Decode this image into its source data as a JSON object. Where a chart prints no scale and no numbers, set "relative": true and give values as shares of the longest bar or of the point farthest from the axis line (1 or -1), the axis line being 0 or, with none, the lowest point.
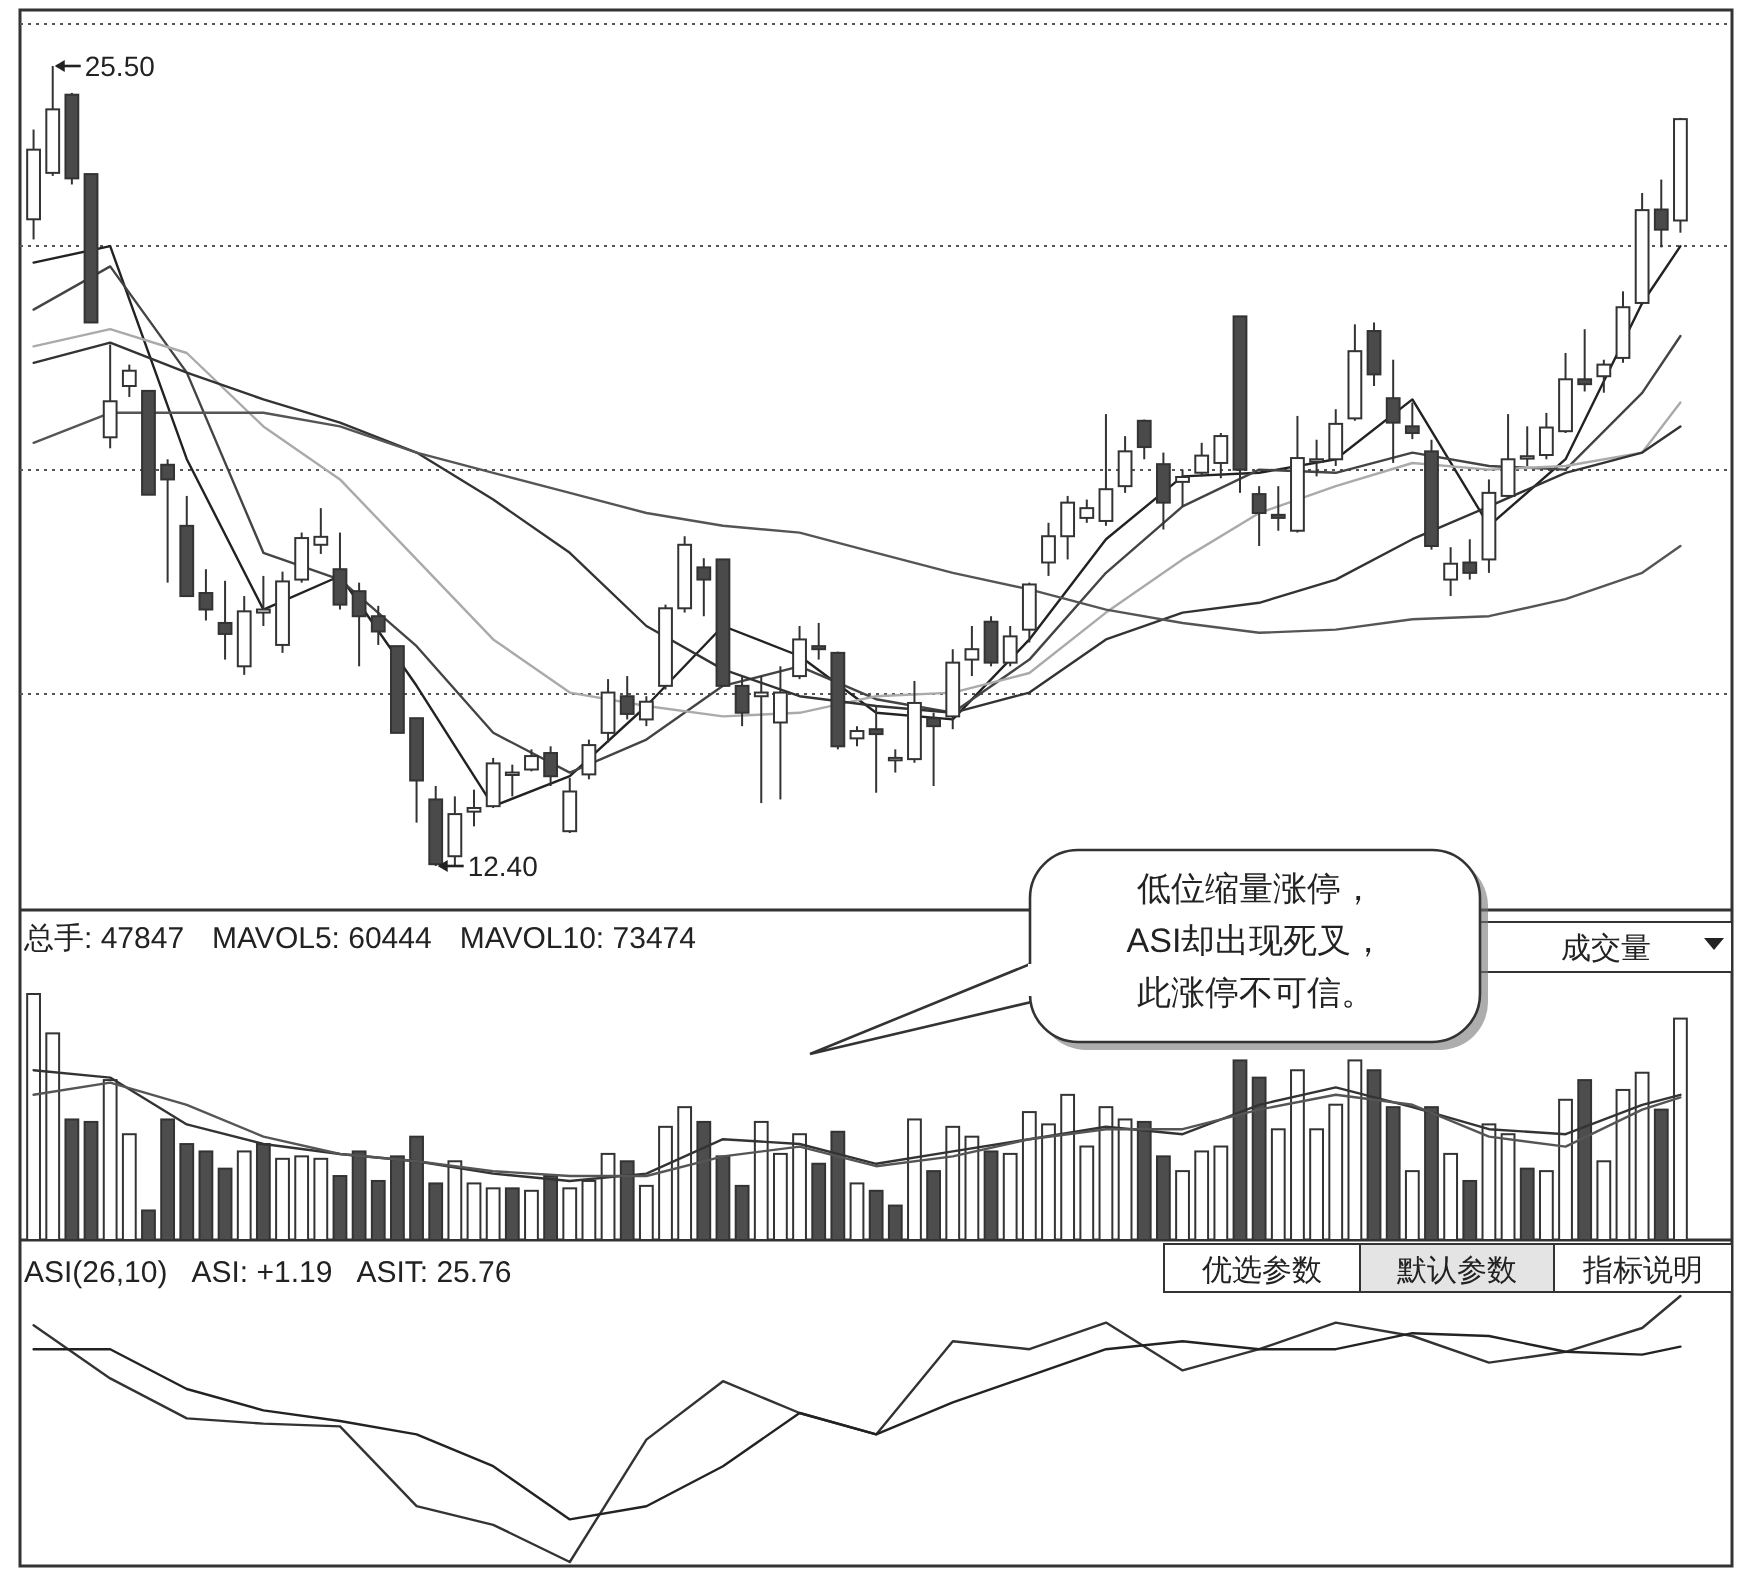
{
  "chart_data": [
    {
      "type": "candlestick",
      "grid": "y",
      "categories": [
        null,
        null,
        null,
        null,
        null,
        null,
        null,
        null,
        null,
        null,
        null,
        null,
        null,
        null,
        null,
        null,
        null,
        null,
        null,
        null,
        null,
        null,
        null,
        null,
        null,
        null,
        null,
        null,
        null,
        null,
        null,
        null,
        null,
        null,
        null,
        null,
        null,
        null,
        null,
        null,
        null,
        null,
        null,
        null,
        null,
        null,
        null,
        null,
        null,
        null,
        null,
        null,
        null,
        null,
        null,
        null,
        null,
        null,
        null,
        null,
        null,
        null,
        null,
        null,
        null,
        null,
        null,
        null,
        null,
        null,
        null,
        null,
        null,
        null,
        null,
        null,
        null,
        null,
        null,
        null,
        null,
        null,
        null,
        null,
        null,
        null,
        null
      ],
      "ohlc": [
        [
          22.99,
          24.46,
          22.66,
          24.13
        ],
        [
          23.75,
          25.5,
          23.7,
          24.79
        ],
        [
          25.03,
          25.06,
          23.56,
          23.66
        ],
        [
          23.73,
          23.73,
          21.3,
          21.3
        ],
        [
          19.42,
          20.94,
          19.24,
          20.01
        ],
        [
          20.26,
          20.61,
          20.08,
          20.51
        ],
        [
          20.18,
          20.18,
          18.48,
          18.48
        ],
        [
          18.97,
          19.06,
          17.04,
          18.73
        ],
        [
          17.97,
          18.46,
          16.82,
          16.82
        ],
        [
          16.87,
          17.26,
          16.42,
          16.6
        ],
        [
          16.38,
          17.07,
          15.78,
          16.2
        ],
        [
          15.67,
          16.82,
          15.53,
          16.57
        ],
        [
          16.55,
          17.15,
          16.33,
          16.6
        ],
        [
          16.02,
          17.22,
          15.89,
          17.06
        ],
        [
          17.09,
          17.86,
          17.04,
          17.77
        ],
        [
          17.66,
          18.26,
          17.51,
          17.79
        ],
        [
          17.26,
          17.86,
          16.6,
          16.68
        ],
        [
          16.9,
          17.04,
          15.67,
          16.49
        ],
        [
          16.49,
          16.66,
          16.02,
          16.24
        ],
        [
          16.0,
          16.0,
          14.58,
          14.58
        ],
        [
          14.82,
          14.82,
          13.11,
          13.8
        ],
        [
          13.49,
          13.71,
          12.4,
          12.43
        ],
        [
          12.56,
          13.54,
          12.4,
          13.25
        ],
        [
          13.29,
          13.65,
          13.05,
          13.35
        ],
        [
          13.38,
          14.17,
          13.35,
          14.08
        ],
        [
          13.89,
          14.06,
          13.54,
          13.93
        ],
        [
          13.98,
          14.31,
          13.95,
          14.2
        ],
        [
          14.25,
          14.36,
          13.71,
          13.87
        ],
        [
          12.97,
          13.84,
          12.94,
          13.62
        ],
        [
          13.9,
          14.47,
          13.82,
          14.38
        ],
        [
          14.58,
          15.46,
          14.42,
          15.24
        ],
        [
          15.18,
          15.51,
          14.8,
          14.89
        ],
        [
          14.8,
          15.18,
          14.69,
          15.09
        ],
        [
          15.35,
          16.68,
          15.29,
          16.62
        ],
        [
          16.62,
          17.8,
          16.55,
          17.66
        ],
        [
          17.29,
          17.44,
          16.49,
          17.09
        ],
        [
          17.42,
          17.42,
          15.35,
          15.35
        ],
        [
          15.35,
          15.51,
          14.69,
          14.91
        ],
        [
          15.18,
          15.51,
          13.43,
          15.24
        ],
        [
          14.75,
          15.67,
          13.49,
          15.24
        ],
        [
          15.51,
          16.33,
          15.46,
          16.11
        ],
        [
          16.0,
          16.38,
          15.78,
          15.95
        ],
        [
          15.89,
          15.91,
          14.31,
          14.36
        ],
        [
          14.49,
          14.69,
          14.36,
          14.61
        ],
        [
          14.64,
          15.02,
          13.6,
          14.56
        ],
        [
          14.15,
          14.31,
          13.93,
          14.17
        ],
        [
          14.15,
          15.43,
          14.09,
          15.07
        ],
        [
          14.82,
          14.91,
          13.71,
          14.69
        ],
        [
          14.85,
          15.95,
          14.64,
          15.73
        ],
        [
          15.78,
          16.33,
          15.51,
          15.95
        ],
        [
          16.4,
          16.49,
          15.67,
          15.73
        ],
        [
          15.73,
          16.33,
          15.67,
          16.16
        ],
        [
          16.27,
          17.04,
          16.06,
          17.01
        ],
        [
          17.37,
          18.02,
          17.15,
          17.8
        ],
        [
          17.8,
          18.46,
          17.42,
          18.35
        ],
        [
          18.1,
          18.4,
          18.02,
          18.26
        ],
        [
          18.05,
          19.8,
          17.97,
          18.57
        ],
        [
          18.62,
          19.44,
          18.51,
          19.19
        ],
        [
          19.69,
          19.71,
          19.06,
          19.26
        ],
        [
          18.98,
          19.17,
          17.91,
          18.35
        ],
        [
          18.69,
          18.89,
          18.29,
          18.77
        ],
        [
          18.84,
          19.33,
          18.78,
          19.12
        ],
        [
          19.0,
          19.49,
          18.75,
          19.44
        ],
        [
          21.4,
          21.4,
          18.51,
          18.89
        ],
        [
          18.49,
          18.62,
          17.64,
          18.18
        ],
        [
          18.15,
          18.62,
          17.89,
          18.1
        ],
        [
          17.89,
          19.77,
          17.86,
          19.08
        ],
        [
          19.02,
          19.38,
          18.78,
          19.06
        ],
        [
          19.06,
          19.88,
          18.95,
          19.64
        ],
        [
          19.73,
          21.27,
          19.69,
          20.83
        ],
        [
          21.16,
          21.3,
          20.26,
          20.45
        ],
        [
          20.06,
          20.69,
          19.0,
          19.66
        ],
        [
          19.6,
          19.99,
          19.39,
          19.49
        ],
        [
          19.19,
          19.38,
          17.58,
          17.64
        ],
        [
          17.09,
          17.62,
          16.82,
          17.35
        ],
        [
          17.37,
          17.75,
          17.09,
          17.2
        ],
        [
          17.42,
          18.73,
          17.2,
          18.51
        ],
        [
          18.46,
          19.8,
          18.42,
          19.06
        ],
        [
          19.08,
          19.6,
          18.95,
          19.11
        ],
        [
          19.13,
          19.82,
          19.06,
          19.58
        ],
        [
          19.52,
          20.8,
          19.49,
          20.37
        ],
        [
          20.37,
          21.19,
          20.17,
          20.29
        ],
        [
          20.42,
          20.69,
          20.15,
          20.61
        ],
        [
          20.72,
          21.81,
          20.64,
          21.55
        ],
        [
          21.62,
          23.42,
          21.59,
          23.14
        ],
        [
          23.15,
          23.64,
          22.53,
          22.82
        ],
        [
          22.97,
          24.65,
          22.77,
          24.63
        ]
      ],
      "series": [
        {
          "type": "line",
          "color": "#222222",
          "values": [
            22.28,
            null,
            null,
            null,
            22.55,
            null,
            null,
            null,
            19.06,
            null,
            null,
            null,
            16.6,
            null,
            null,
            null,
            17.15,
            null,
            null,
            null,
            15.35,
            null,
            null,
            null,
            13.38,
            null,
            null,
            null,
            13.87,
            null,
            null,
            null,
            15.02,
            null,
            null,
            null,
            16.33,
            null,
            null,
            null,
            15.84,
            null,
            null,
            null,
            14.91,
            null,
            null,
            null,
            14.8,
            null,
            null,
            null,
            16.11,
            null,
            null,
            null,
            17.75,
            null,
            null,
            null,
            18.78,
            null,
            null,
            null,
            18.84,
            null,
            null,
            null,
            19.06,
            null,
            null,
            null,
            20.04,
            null,
            null,
            null,
            17.97,
            null,
            null,
            null,
            19.06,
            null,
            null,
            null,
            21.62,
            null,
            22.55
          ]
        },
        {
          "type": "line",
          "color": "#444444",
          "values": [
            21.51,
            null,
            null,
            null,
            22.22,
            null,
            null,
            null,
            20.48,
            null,
            null,
            null,
            17.53,
            null,
            null,
            null,
            17.09,
            null,
            null,
            null,
            16.0,
            null,
            null,
            null,
            14.58,
            null,
            null,
            null,
            13.93,
            null,
            null,
            null,
            14.47,
            null,
            null,
            null,
            15.35,
            null,
            null,
            null,
            15.67,
            null,
            null,
            null,
            15.13,
            null,
            null,
            null,
            14.91,
            null,
            null,
            null,
            15.78,
            null,
            null,
            null,
            17.2,
            null,
            null,
            null,
            18.29,
            null,
            null,
            null,
            18.89,
            null,
            null,
            null,
            18.84,
            null,
            null,
            null,
            19.17,
            null,
            null,
            null,
            18.95,
            null,
            null,
            null,
            18.89,
            null,
            null,
            null,
            20.15,
            null,
            21.08
          ]
        },
        {
          "type": "line",
          "color": "#aaaaaa",
          "values": [
            20.91,
            null,
            null,
            null,
            21.19,
            null,
            null,
            null,
            20.8,
            null,
            null,
            null,
            19.6,
            null,
            null,
            null,
            18.73,
            null,
            null,
            null,
            17.42,
            null,
            null,
            null,
            16.11,
            null,
            null,
            null,
            15.24,
            null,
            null,
            null,
            15.02,
            null,
            null,
            null,
            14.85,
            null,
            null,
            null,
            14.91,
            null,
            null,
            null,
            15.18,
            null,
            null,
            null,
            15.24,
            null,
            null,
            null,
            15.56,
            null,
            null,
            null,
            16.55,
            null,
            null,
            null,
            17.42,
            null,
            null,
            null,
            18.18,
            null,
            null,
            null,
            18.62,
            null,
            null,
            null,
            19.0,
            null,
            null,
            null,
            18.89,
            null,
            null,
            null,
            18.95,
            null,
            null,
            null,
            19.17,
            null,
            19.99
          ]
        },
        {
          "type": "line",
          "color": "#333333",
          "values": [
            20.64,
            null,
            null,
            null,
            20.97,
            null,
            null,
            null,
            20.48,
            null,
            null,
            null,
            20.04,
            null,
            null,
            null,
            19.66,
            null,
            null,
            null,
            19.17,
            null,
            null,
            null,
            18.4,
            null,
            null,
            null,
            17.53,
            null,
            null,
            null,
            16.33,
            null,
            null,
            null,
            15.62,
            null,
            null,
            null,
            15.18,
            null,
            null,
            null,
            15.02,
            null,
            null,
            null,
            14.91,
            null,
            null,
            null,
            15.24,
            null,
            null,
            null,
            16.11,
            null,
            null,
            null,
            16.55,
            null,
            null,
            null,
            16.71,
            null,
            null,
            null,
            17.09,
            null,
            null,
            null,
            17.75,
            null,
            null,
            null,
            18.29,
            null,
            null,
            null,
            18.84,
            null,
            null,
            null,
            19.17,
            null,
            19.6
          ]
        },
        {
          "type": "line",
          "color": "#555555",
          "values": [
            19.33,
            null,
            null,
            null,
            19.82,
            null,
            null,
            null,
            19.82,
            null,
            null,
            null,
            19.82,
            null,
            null,
            null,
            19.6,
            null,
            null,
            null,
            19.17,
            null,
            null,
            null,
            18.84,
            null,
            null,
            null,
            18.51,
            null,
            null,
            null,
            18.18,
            null,
            null,
            null,
            17.97,
            null,
            null,
            null,
            17.86,
            null,
            null,
            null,
            17.53,
            null,
            null,
            null,
            17.2,
            null,
            null,
            null,
            16.93,
            null,
            null,
            null,
            16.6,
            null,
            null,
            null,
            16.38,
            null,
            null,
            null,
            16.22,
            null,
            null,
            null,
            16.27,
            null,
            null,
            null,
            16.44,
            null,
            null,
            null,
            16.49,
            null,
            null,
            null,
            16.77,
            null,
            null,
            null,
            17.2,
            null,
            17.64
          ]
        }
      ],
      "annotations": [
        "25.50",
        "12.40"
      ]
    },
    {
      "type": "bar",
      "relative": true,
      "categories": [
        null,
        null,
        null,
        null,
        null,
        null,
        null,
        null,
        null,
        null,
        null,
        null,
        null,
        null,
        null,
        null,
        null,
        null,
        null,
        null,
        null,
        null,
        null,
        null,
        null,
        null,
        null,
        null,
        null,
        null,
        null,
        null,
        null,
        null,
        null,
        null,
        null,
        null,
        null,
        null,
        null,
        null,
        null,
        null,
        null,
        null,
        null,
        null,
        null,
        null,
        null,
        null,
        null,
        null,
        null,
        null,
        null,
        null,
        null,
        null,
        null,
        null,
        null,
        null,
        null,
        null,
        null,
        null,
        null,
        null,
        null,
        null,
        null,
        null,
        null,
        null,
        null,
        null,
        null,
        null,
        null,
        null,
        null,
        null,
        null,
        null,
        null
      ],
      "series": [
        {
          "type": "bar",
          "values": [
            1,
            0.84,
            0.49,
            0.48,
            0.65,
            0.43,
            0.12,
            0.49,
            0.39,
            0.36,
            0.29,
            0.36,
            0.39,
            0.33,
            0.34,
            0.33,
            0.26,
            0.36,
            0.24,
            0.34,
            0.42,
            0.23,
            0.32,
            0.23,
            0.21,
            0.21,
            0.2,
            0.26,
            0.21,
            0.24,
            0.35,
            0.32,
            0.22,
            0.46,
            0.54,
            0.48,
            0.34,
            0.22,
            0.48,
            0.35,
            0.43,
            0.31,
            0.44,
            0.23,
            0.2,
            0.14,
            0.49,
            0.28,
            0.46,
            0.42,
            0.36,
            0.35,
            0.52,
            0.47,
            0.59,
            0.38,
            0.54,
            0.49,
            0.48,
            0.34,
            0.28,
            0.36,
            0.38,
            0.73,
            0.66,
            0.45,
            0.69,
            0.45,
            0.55,
            0.73,
            0.69,
            0.54,
            0.28,
            0.54,
            0.35,
            0.24,
            0.47,
            0.43,
            0.29,
            0.28,
            0.57,
            0.65,
            0.32,
            0.61,
            0.68,
            0.53,
            0.9
          ],
          "colors": [
            "#ffffff",
            "#ffffff",
            "#4d4d4d",
            "#4d4d4d",
            "#ffffff",
            "#ffffff",
            "#4d4d4d",
            "#4d4d4d",
            "#4d4d4d",
            "#4d4d4d",
            "#4d4d4d",
            "#ffffff",
            "#4d4d4d",
            "#ffffff",
            "#ffffff",
            "#ffffff",
            "#4d4d4d",
            "#4d4d4d",
            "#4d4d4d",
            "#4d4d4d",
            "#4d4d4d",
            "#4d4d4d",
            "#ffffff",
            "#ffffff",
            "#ffffff",
            "#4d4d4d",
            "#ffffff",
            "#4d4d4d",
            "#ffffff",
            "#ffffff",
            "#ffffff",
            "#4d4d4d",
            "#ffffff",
            "#ffffff",
            "#ffffff",
            "#4d4d4d",
            "#4d4d4d",
            "#4d4d4d",
            "#ffffff",
            "#ffffff",
            "#ffffff",
            "#4d4d4d",
            "#4d4d4d",
            "#ffffff",
            "#4d4d4d",
            "#4d4d4d",
            "#ffffff",
            "#4d4d4d",
            "#ffffff",
            "#ffffff",
            "#4d4d4d",
            "#ffffff",
            "#ffffff",
            "#ffffff",
            "#ffffff",
            "#ffffff",
            "#ffffff",
            "#ffffff",
            "#4d4d4d",
            "#4d4d4d",
            "#ffffff",
            "#ffffff",
            "#ffffff",
            "#4d4d4d",
            "#4d4d4d",
            "#ffffff",
            "#ffffff",
            "#ffffff",
            "#ffffff",
            "#ffffff",
            "#4d4d4d",
            "#4d4d4d",
            "#ffffff",
            "#4d4d4d",
            "#ffffff",
            "#4d4d4d",
            "#ffffff",
            "#ffffff",
            "#4d4d4d",
            "#ffffff",
            "#ffffff",
            "#4d4d4d",
            "#ffffff",
            "#ffffff",
            "#ffffff",
            "#4d4d4d",
            "#ffffff"
          ]
        },
        {
          "type": "line",
          "color": "#333333",
          "values": [
            0.69,
            null,
            null,
            null,
            0.66,
            null,
            null,
            null,
            0.47,
            null,
            null,
            null,
            0.39,
            null,
            null,
            null,
            0.35,
            null,
            null,
            null,
            0.32,
            null,
            null,
            null,
            0.27,
            null,
            null,
            null,
            0.24,
            null,
            null,
            null,
            0.27,
            null,
            null,
            null,
            0.41,
            null,
            null,
            null,
            0.39,
            null,
            null,
            null,
            0.31,
            null,
            null,
            null,
            0.36,
            null,
            null,
            null,
            0.41,
            null,
            null,
            null,
            0.46,
            null,
            null,
            null,
            0.43,
            null,
            null,
            null,
            0.55,
            null,
            null,
            null,
            0.62,
            null,
            null,
            null,
            0.54,
            null,
            null,
            null,
            0.45,
            null,
            null,
            null,
            0.43,
            null,
            null,
            null,
            0.55,
            null,
            0.59
          ]
        },
        {
          "type": "line",
          "color": "#555555",
          "values": [
            0.59,
            null,
            null,
            null,
            0.64,
            null,
            null,
            null,
            0.55,
            null,
            null,
            null,
            0.42,
            null,
            null,
            null,
            0.35,
            null,
            null,
            null,
            0.32,
            null,
            null,
            null,
            0.28,
            null,
            null,
            null,
            0.26,
            null,
            null,
            null,
            0.26,
            null,
            null,
            null,
            0.34,
            null,
            null,
            null,
            0.38,
            null,
            null,
            null,
            0.3,
            null,
            null,
            null,
            0.34,
            null,
            null,
            null,
            0.41,
            null,
            null,
            null,
            0.45,
            null,
            null,
            null,
            0.45,
            null,
            null,
            null,
            0.53,
            null,
            null,
            null,
            0.59,
            null,
            null,
            null,
            0.55,
            null,
            null,
            null,
            0.42,
            null,
            null,
            null,
            0.38,
            null,
            null,
            null,
            0.53,
            null,
            0.58
          ]
        }
      ],
      "annotations": [
        "总手: 47847",
        "MAVOL5: 60444",
        "MAVOL10: 73474",
        "成交量",
        "低位缩量涨停，",
        "ASI却出现死叉，",
        "此涨停不可信。"
      ]
    },
    {
      "type": "line",
      "relative": true,
      "categories": [
        null,
        null,
        null,
        null,
        null,
        null,
        null,
        null,
        null,
        null,
        null,
        null,
        null,
        null,
        null,
        null,
        null,
        null,
        null,
        null,
        null,
        null,
        null,
        null,
        null,
        null,
        null,
        null,
        null,
        null,
        null,
        null,
        null,
        null,
        null,
        null,
        null,
        null,
        null,
        null,
        null,
        null,
        null,
        null,
        null,
        null,
        null,
        null,
        null,
        null,
        null,
        null,
        null,
        null,
        null,
        null,
        null,
        null,
        null,
        null,
        null,
        null,
        null,
        null,
        null,
        null,
        null,
        null,
        null,
        null,
        null,
        null,
        null,
        null,
        null,
        null,
        null,
        null,
        null,
        null,
        null,
        null,
        null,
        null,
        null,
        null,
        null
      ],
      "series": [
        {
          "color": "#333333",
          "values": [
            0.89,
            null,
            null,
            null,
            0.69,
            null,
            null,
            null,
            0.54,
            null,
            null,
            null,
            0.52,
            null,
            null,
            null,
            0.51,
            null,
            null,
            null,
            0.21,
            null,
            null,
            null,
            0.14,
            null,
            null,
            null,
            0,
            null,
            null,
            null,
            0.46,
            null,
            null,
            null,
            0.68,
            null,
            null,
            null,
            0.56,
            null,
            null,
            null,
            0.48,
            null,
            null,
            null,
            0.83,
            null,
            null,
            null,
            0.8,
            null,
            null,
            null,
            0.9,
            null,
            null,
            null,
            0.72,
            null,
            null,
            null,
            0.8,
            null,
            null,
            null,
            0.9,
            null,
            null,
            null,
            0.85,
            null,
            null,
            null,
            0.75,
            null,
            null,
            null,
            0.79,
            null,
            null,
            null,
            0.88,
            null,
            1
          ]
        },
        {
          "color": "#222222",
          "values": [
            0.8,
            null,
            null,
            null,
            0.8,
            null,
            null,
            null,
            0.65,
            null,
            null,
            null,
            0.57,
            null,
            null,
            null,
            0.53,
            null,
            null,
            null,
            0.48,
            null,
            null,
            null,
            0.36,
            null,
            null,
            null,
            0.16,
            null,
            null,
            null,
            0.21,
            null,
            null,
            null,
            0.36,
            null,
            null,
            null,
            0.56,
            null,
            null,
            null,
            0.48,
            null,
            null,
            null,
            0.6,
            null,
            null,
            null,
            0.7,
            null,
            null,
            null,
            0.8,
            null,
            null,
            null,
            0.83,
            null,
            null,
            null,
            0.8,
            null,
            null,
            null,
            0.8,
            null,
            null,
            null,
            0.86,
            null,
            null,
            null,
            0.85,
            null,
            null,
            null,
            0.79,
            null,
            null,
            null,
            0.78,
            null,
            0.81
          ]
        }
      ],
      "annotations": [
        "ASI(26,10)",
        "ASI: +1.19",
        "ASIT: 25.76",
        "优选参数",
        "默认参数",
        "指标说明"
      ]
    }
  ]
}
